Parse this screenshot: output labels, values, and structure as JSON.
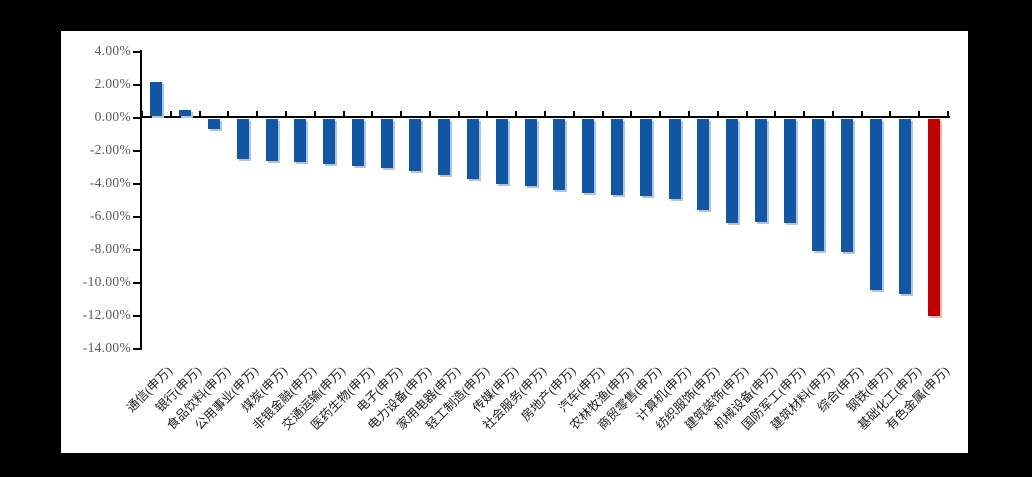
{
  "chart_data": {
    "type": "bar",
    "title": "",
    "categories": [
      "通信(申万)",
      "银行(申万)",
      "食品饮料(申万)",
      "公用事业(申万)",
      "煤炭(申万)",
      "非银金融(申万)",
      "交通运输(申万)",
      "医药生物(申万)",
      "电子(申万)",
      "电力设备(申万)",
      "家用电器(申万)",
      "轻工制造(申万)",
      "传媒(申万)",
      "社会服务(申万)",
      "房地产(申万)",
      "汽车(申万)",
      "农林牧渔(申万)",
      "商贸零售(申万)",
      "计算机(申万)",
      "纺织服饰(申万)",
      "建筑装饰(申万)",
      "机械设备(申万)",
      "国防军工(申万)",
      "建筑材料(申万)",
      "综合(申万)",
      "钢铁(申万)",
      "基础化工(申万)",
      "有色金属(申万)"
    ],
    "values": [
      2.1,
      0.4,
      -0.65,
      -2.45,
      -2.55,
      -2.65,
      -2.75,
      -2.9,
      -3.0,
      -3.2,
      -3.45,
      -3.65,
      -3.95,
      -4.1,
      -4.35,
      -4.5,
      -4.65,
      -4.7,
      -4.9,
      -5.55,
      -6.35,
      -6.3,
      -6.35,
      -8.0,
      -8.1,
      -10.4,
      -10.65,
      -11.95
    ],
    "unit": "%",
    "y_tick_labels": [
      "4.00%",
      "2.00%",
      "0.00%",
      "-2.00%",
      "-4.00%",
      "-6.00%",
      "-8.00%",
      "-10.00%",
      "-12.00%",
      "-14.00%"
    ],
    "y_tick_values": [
      4,
      2,
      0,
      -2,
      -4,
      -6,
      -8,
      -10,
      -12,
      -14
    ],
    "ylim": [
      -14,
      4
    ],
    "xlabel": "",
    "ylabel": "",
    "grid": false,
    "legend": false,
    "bar_color": "#1257A4",
    "bar_shadow_color": "#A9C6E5",
    "highlight_index": 27,
    "highlight_color": "#C00000",
    "highlight_shadow_color": "#EFB3B3",
    "axis_color": "#000000",
    "y_tick_label_color": "#595959",
    "category_label_color": "#1F1F1F",
    "plot_background": "#FFFFFF",
    "frame_background": "#000000"
  }
}
